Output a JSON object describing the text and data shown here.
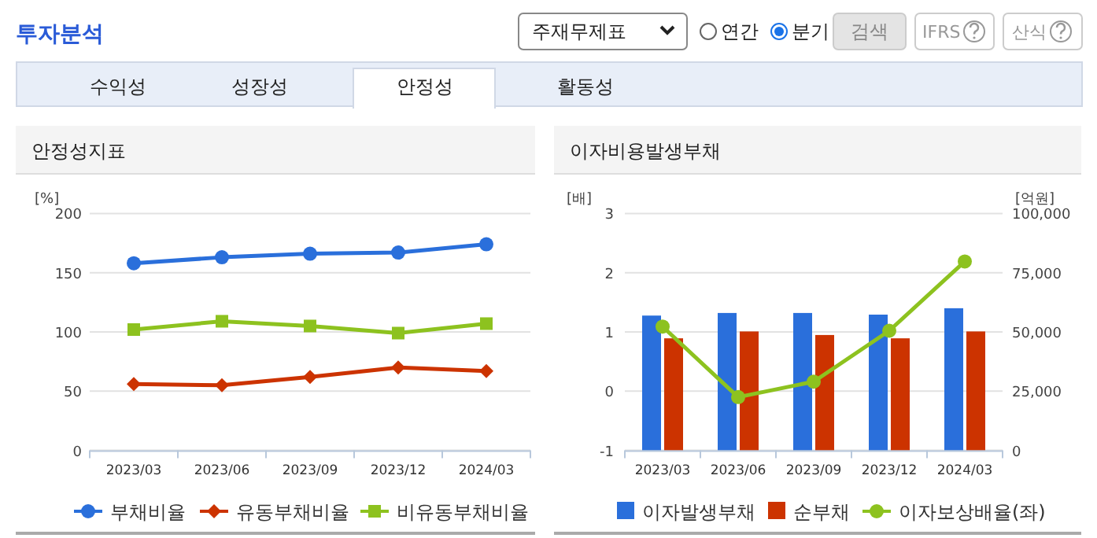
{
  "chart_data": [
    {
      "type": "other",
      "title": "투자분석",
      "annotations": [
        "주재무제표",
        "연간",
        "분기",
        "검색",
        "IFRS",
        "산식",
        "수익성",
        "성장성",
        "안정성",
        "활동성"
      ]
    },
    {
      "type": "line",
      "title": "안정성지표",
      "ylabel": "[%]",
      "categories": [
        "2023/03",
        "2023/06",
        "2023/09",
        "2023/12",
        "2024/03"
      ],
      "series": [
        {
          "name": "부채비율",
          "color": "#2a6fdb",
          "marker": "circle",
          "values": [
            158,
            163,
            166,
            167,
            174
          ]
        },
        {
          "name": "유동부채비율",
          "color": "#cc3300",
          "marker": "diamond",
          "values": [
            56,
            55,
            62,
            70,
            67
          ]
        },
        {
          "name": "비유동부채비율",
          "color": "#8dc21f",
          "marker": "square",
          "values": [
            102,
            109,
            105,
            99,
            107
          ]
        }
      ],
      "ylim": [
        0,
        200
      ],
      "yticks": [
        0,
        50,
        100,
        150,
        200
      ],
      "grid": "y",
      "legend": "bottom"
    },
    {
      "type": "bar",
      "title": "이자비용발생부채",
      "ylabel": "[배]",
      "y2label": "[억원]",
      "categories": [
        "2023/03",
        "2023/06",
        "2023/09",
        "2023/12",
        "2024/03"
      ],
      "series": [
        {
          "name": "이자발생부채",
          "color": "#2a6fdb",
          "axis": "y2",
          "values": [
            56900,
            58000,
            58000,
            57300,
            60000
          ]
        },
        {
          "name": "순부채",
          "color": "#cc3300",
          "axis": "y2",
          "values": [
            47300,
            50200,
            48700,
            47300,
            50200
          ]
        },
        {
          "name": "이자보상배율(좌)",
          "type": "line",
          "color": "#8dc21f",
          "marker": "circle",
          "values": [
            1.09,
            -0.1,
            0.16,
            1.02,
            2.19
          ]
        }
      ],
      "ylim": [
        -1,
        3
      ],
      "yticks": [
        -1,
        0,
        1,
        2,
        3
      ],
      "y2lim": [
        0,
        100000
      ],
      "y2ticks": [
        {
          "value": 0,
          "label": "0"
        },
        {
          "value": 25000,
          "label": "25,000"
        },
        {
          "value": 50000,
          "label": "50,000"
        },
        {
          "value": 75000,
          "label": "75,000"
        },
        {
          "value": 100000,
          "label": "100,000"
        }
      ],
      "grid": "y",
      "legend": "bottom"
    }
  ]
}
